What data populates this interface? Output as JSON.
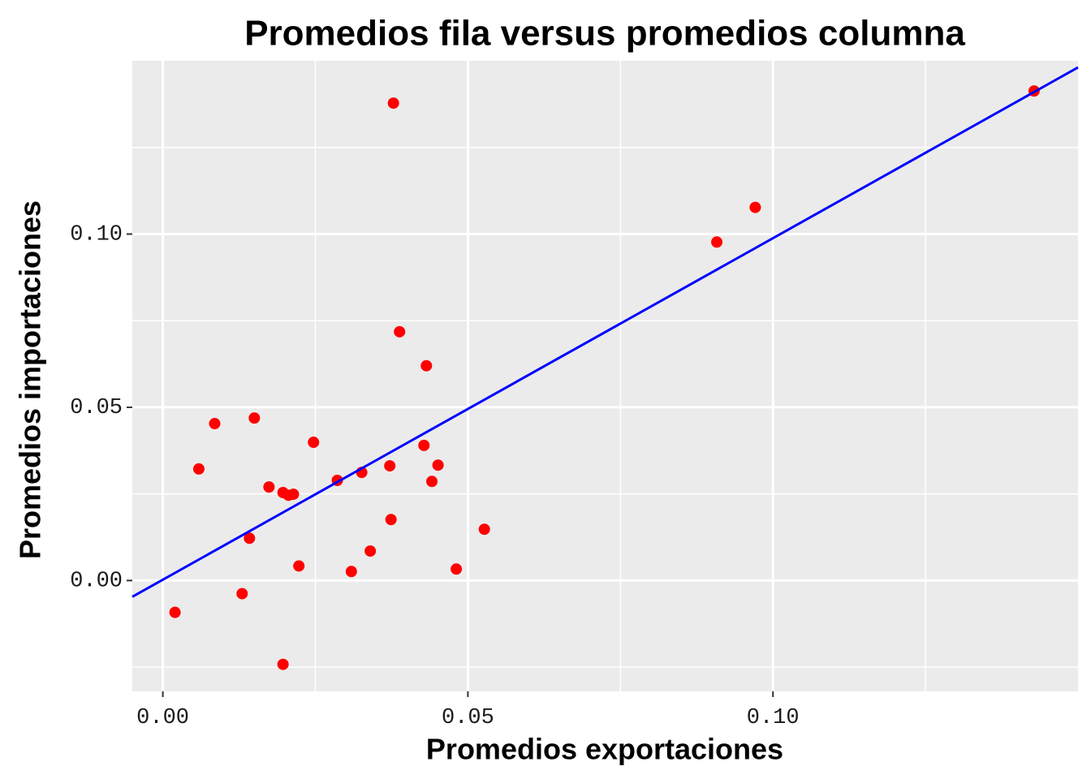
{
  "chart_data": {
    "type": "scatter",
    "title": "Promedios fila versus promedios columna",
    "x_label": "Promedios exportaciones",
    "y_label": "Promedios importaciones",
    "xlim": [
      -0.005,
      0.15
    ],
    "ylim": [
      -0.032,
      0.15
    ],
    "xticks": [
      {
        "value": 0,
        "label": "0.00"
      },
      {
        "value": 0.05,
        "label": "0.05"
      },
      {
        "value": 0.1,
        "label": "0.10"
      }
    ],
    "yticks": [
      {
        "value": 0,
        "label": "0.00"
      },
      {
        "value": 0.05,
        "label": "0.05"
      },
      {
        "value": 0.1,
        "label": "0.10"
      }
    ],
    "minor_xticks": [
      0.025,
      0.075,
      0.125
    ],
    "minor_yticks": [
      -0.025,
      0.025,
      0.075,
      0.125
    ],
    "grid": true,
    "series": [
      {
        "color": "#ff0000",
        "x": [
          0.002,
          0.0059,
          0.0085,
          0.013,
          0.0142,
          0.015,
          0.0174,
          0.0197,
          0.0197,
          0.0206,
          0.0214,
          0.0223,
          0.0247,
          0.0286,
          0.0309,
          0.0326,
          0.034,
          0.0372,
          0.0374,
          0.0378,
          0.0388,
          0.0428,
          0.0432,
          0.0441,
          0.0451,
          0.0481,
          0.0527,
          0.0908,
          0.0971,
          0.1428
        ],
        "values": [
          -0.0092,
          0.0322,
          0.0453,
          -0.0038,
          0.0122,
          0.0469,
          0.027,
          0.0254,
          -0.0242,
          0.0246,
          0.0249,
          0.0042,
          0.0399,
          0.0289,
          0.0026,
          0.0312,
          0.0085,
          0.0331,
          0.0176,
          0.1378,
          0.0718,
          0.039,
          0.062,
          0.0286,
          0.0333,
          0.0033,
          0.0148,
          0.0977,
          0.1077,
          0.1413
        ]
      }
    ],
    "line": {
      "color": "#0000ff",
      "x": [
        -0.005,
        0.15
      ],
      "values": [
        -0.0047,
        0.1481
      ]
    }
  }
}
